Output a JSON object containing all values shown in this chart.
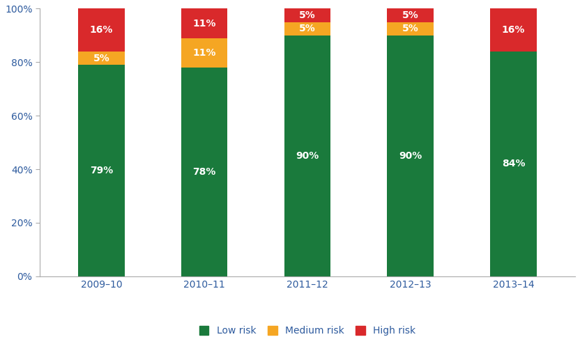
{
  "categories": [
    "2009–10",
    "2010–11",
    "2011–12",
    "2012–13",
    "2013–14"
  ],
  "low_risk": [
    79,
    78,
    90,
    90,
    84
  ],
  "medium_risk": [
    5,
    11,
    5,
    5,
    0
  ],
  "high_risk": [
    16,
    11,
    5,
    5,
    16
  ],
  "low_risk_color": "#1a7a3c",
  "medium_risk_color": "#f5a623",
  "high_risk_color": "#d9292b",
  "low_risk_label": "Low risk",
  "medium_risk_label": "Medium risk",
  "high_risk_label": "High risk",
  "bar_width": 0.45,
  "ylim": [
    0,
    100
  ],
  "ytick_labels": [
    "0%",
    "20%",
    "40%",
    "60%",
    "80%",
    "100%"
  ],
  "ytick_values": [
    0,
    20,
    40,
    60,
    80,
    100
  ],
  "label_fontsize": 10,
  "legend_fontsize": 10,
  "tick_fontsize": 10,
  "background_color": "#ffffff",
  "text_color_white": "#ffffff",
  "text_color_dark": "#404040",
  "spine_color": "#aaaaaa",
  "axis_label_color": "#2e5b9e"
}
